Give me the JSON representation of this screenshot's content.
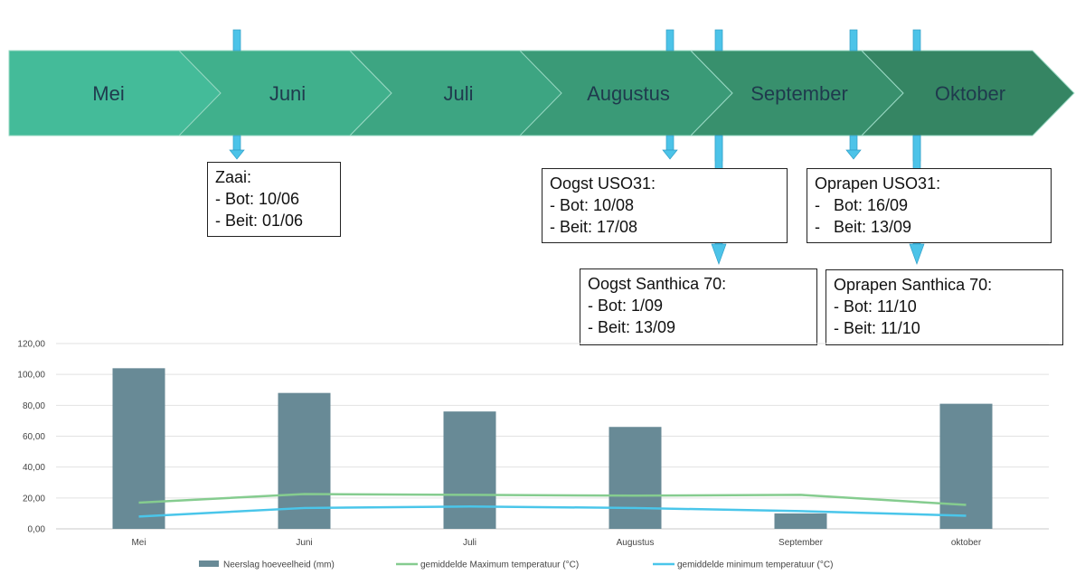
{
  "timeline": {
    "months": [
      "Mei",
      "Juni",
      "Juli",
      "Augustus",
      "September",
      "Oktober"
    ],
    "colors": [
      "#44bb99",
      "#40b08c",
      "#3da582",
      "#3a9a77",
      "#38906d",
      "#358563"
    ],
    "marker_color": "#4cc3e8"
  },
  "notes": [
    {
      "title": "Zaai:",
      "lines": [
        "- Bot: 10/06",
        "- Beit: 01/06"
      ]
    },
    {
      "title": "Oogst USO31:",
      "lines": [
        "- Bot: 10/08",
        "- Beit: 17/08"
      ]
    },
    {
      "title": "Oprapen USO31:",
      "lines": [
        "-   Bot: 16/09",
        "-   Beit: 13/09"
      ]
    },
    {
      "title": "Oogst Santhica 70:",
      "lines": [
        "- Bot: 1/09",
        "- Beit: 13/09"
      ]
    },
    {
      "title": "Oprapen Santhica 70:",
      "lines": [
        "- Bot: 11/10",
        "- Beit: 11/10"
      ]
    }
  ],
  "chart_data": {
    "type": "bar",
    "categories": [
      "Mei",
      "Juni",
      "Juli",
      "Augustus",
      "September",
      "oktober"
    ],
    "ylim": [
      0,
      120
    ],
    "yticks": [
      "0,00",
      "20,00",
      "40,00",
      "60,00",
      "80,00",
      "100,00",
      "120,00"
    ],
    "series": [
      {
        "name": "Neerslag hoeveelheid (mm)",
        "type": "bar",
        "color": "#688a96",
        "values": [
          104,
          88,
          76,
          66,
          10,
          81
        ]
      },
      {
        "name": "gemiddelde Maximum temperatuur (°C)",
        "type": "line",
        "color": "#85cc8f",
        "values": [
          17,
          22.5,
          22,
          21.5,
          22,
          15.5
        ]
      },
      {
        "name": "gemiddelde minimum temperatuur (°C)",
        "type": "line",
        "color": "#4ac6ea",
        "values": [
          8,
          13.5,
          14.5,
          13.5,
          11.5,
          8.5
        ]
      }
    ],
    "grid": true,
    "legend": "bottom"
  }
}
